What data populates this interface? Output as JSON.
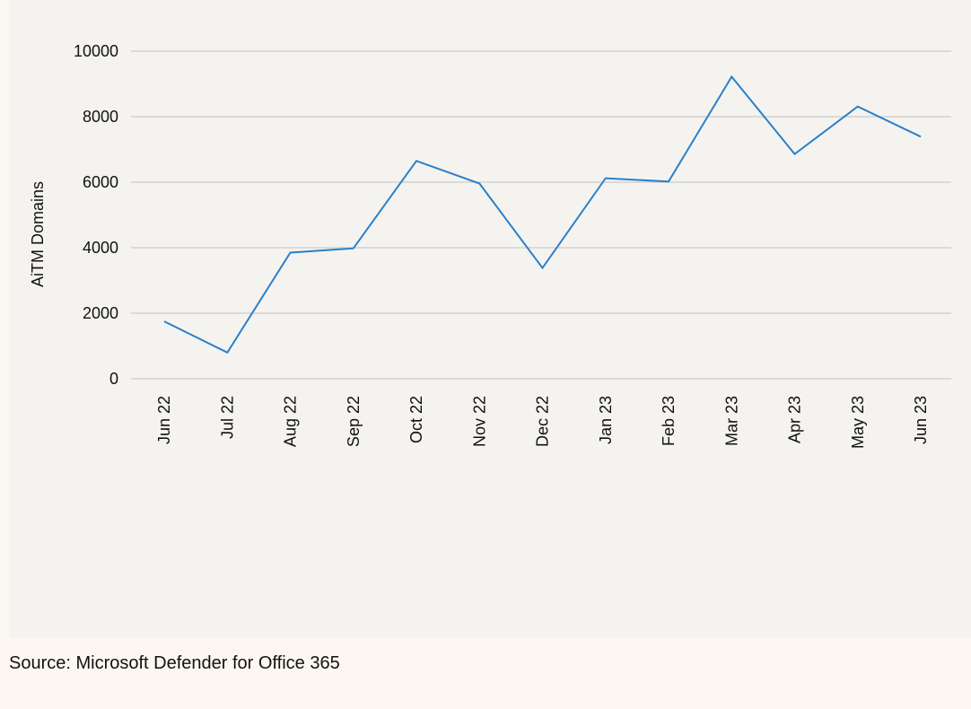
{
  "chart_data": {
    "type": "line",
    "title": "",
    "xlabel": "",
    "ylabel": "AiTM Domains",
    "categories": [
      "Jun 22",
      "Jul 22",
      "Aug 22",
      "Sep 22",
      "Oct 22",
      "Nov 22",
      "Dec 22",
      "Jan 23",
      "Feb 23",
      "Mar 23",
      "Apr 23",
      "May 23",
      "Jun 23"
    ],
    "series": [
      {
        "name": "AiTM Domains",
        "color": "#2b80c9",
        "values": [
          1750,
          800,
          3850,
          3980,
          6650,
          5960,
          3380,
          6120,
          6020,
          9220,
          6860,
          8310,
          7390
        ]
      }
    ],
    "ylim": [
      0,
      10000
    ],
    "yticks": [
      0,
      2000,
      4000,
      6000,
      8000,
      10000
    ],
    "ytick_labels": [
      "0",
      "2000",
      "4000",
      "6000",
      "8000",
      "10000"
    ],
    "grid": true,
    "legend": "none"
  },
  "footer": {
    "source": "Source: Microsoft Defender for Office 365"
  },
  "colors": {
    "panel_background": "#f5f3f0",
    "page_background": "#fdf7f1",
    "gridline": "#cccccc",
    "line": "#2b80c9"
  }
}
